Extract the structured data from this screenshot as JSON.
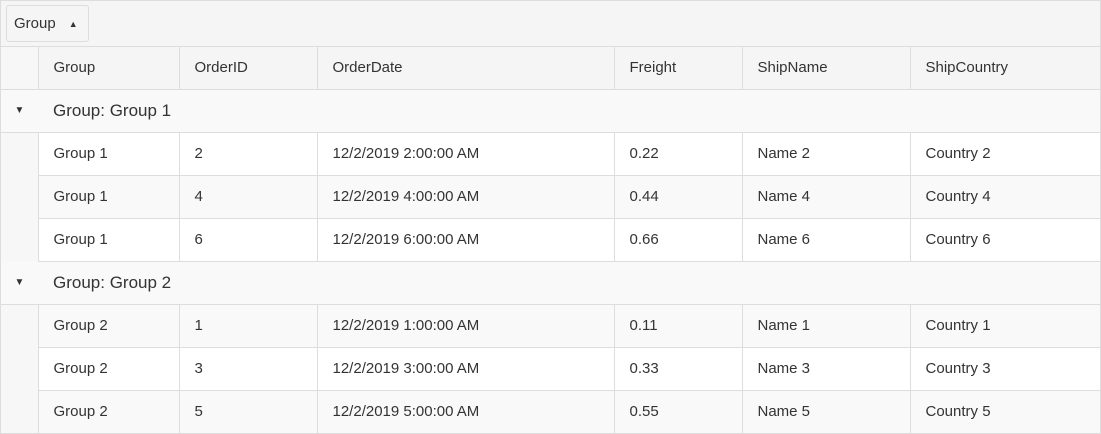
{
  "group_panel": {
    "label": "Group",
    "sort_icon": "triangle-up-icon"
  },
  "columns": [
    "Group",
    "OrderID",
    "OrderDate",
    "Freight",
    "ShipName",
    "ShipCountry"
  ],
  "groups": [
    {
      "header": "Group: Group 1",
      "rows": [
        [
          "Group 1",
          "2",
          "12/2/2019 2:00:00 AM",
          "0.22",
          "Name 2",
          "Country 2"
        ],
        [
          "Group 1",
          "4",
          "12/2/2019 4:00:00 AM",
          "0.44",
          "Name 4",
          "Country 4"
        ],
        [
          "Group 1",
          "6",
          "12/2/2019 6:00:00 AM",
          "0.66",
          "Name 6",
          "Country 6"
        ]
      ]
    },
    {
      "header": "Group: Group 2",
      "rows": [
        [
          "Group 2",
          "1",
          "12/2/2019 1:00:00 AM",
          "0.11",
          "Name 1",
          "Country 1"
        ],
        [
          "Group 2",
          "3",
          "12/2/2019 3:00:00 AM",
          "0.33",
          "Name 3",
          "Country 3"
        ],
        [
          "Group 2",
          "5",
          "12/2/2019 5:00:00 AM",
          "0.55",
          "Name 5",
          "Country 5"
        ]
      ]
    }
  ]
}
